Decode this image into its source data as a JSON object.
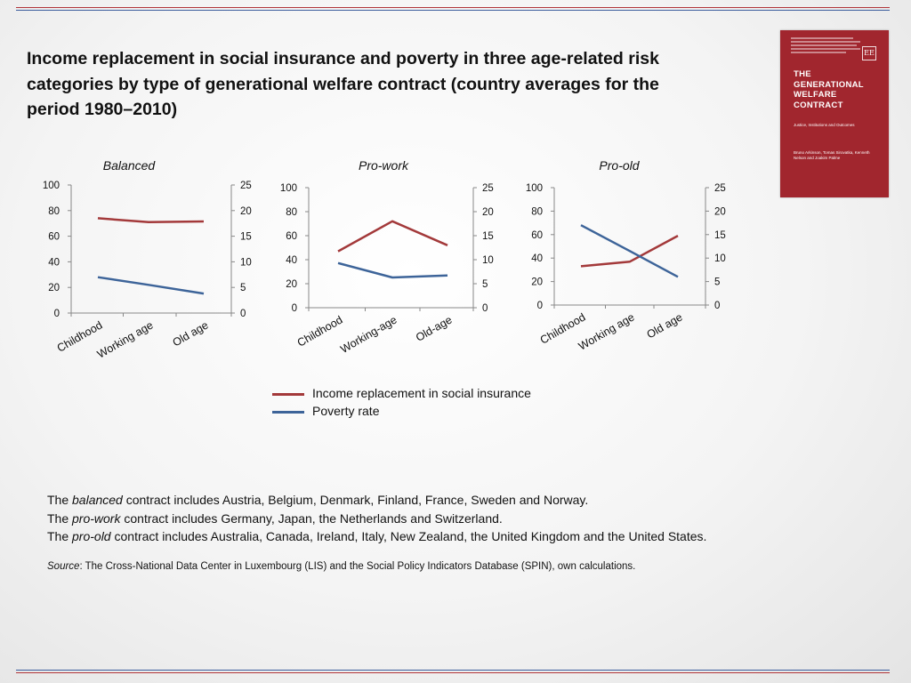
{
  "title": "Income replacement in social insurance and poverty in three age-related risk categories by type of generational welfare contract (country averages for the period 1980–2010)",
  "book": {
    "title": "THE\nGENERATIONAL\nWELFARE\nCONTRACT",
    "subtitle": "Justice, Institutions and Outcomes",
    "publisher_logo": "EE",
    "authors": "Bruno Arkinson, Tomas Sirovatka, Kenneth Nelson and Joakim Palme",
    "color": "#a1262e"
  },
  "chart_data": [
    {
      "type": "line",
      "title": "Balanced",
      "categories": [
        "Childhood",
        "Working age",
        "Old age"
      ],
      "y_left": {
        "ticks": [
          "0",
          "20",
          "40",
          "60",
          "80",
          "100"
        ],
        "ylim": [
          0,
          100
        ]
      },
      "y_right": {
        "ticks": [
          "0",
          "5",
          "10",
          "15",
          "20",
          "25"
        ],
        "ylim": [
          0,
          25
        ]
      },
      "series": [
        {
          "name": "Income replacement in social insurance",
          "axis": "left",
          "values": [
            74,
            71,
            71.5
          ]
        },
        {
          "name": "Poverty rate",
          "axis": "right",
          "values": [
            7,
            5.5,
            3.8
          ]
        }
      ]
    },
    {
      "type": "line",
      "title": "Pro-work",
      "categories": [
        "Childhood",
        "Working-age",
        "Old-age"
      ],
      "y_left": {
        "ticks": [
          "0",
          "20",
          "40",
          "60",
          "80",
          "100"
        ],
        "ylim": [
          0,
          100
        ]
      },
      "y_right": {
        "ticks": [
          "0",
          "5",
          "10",
          "15",
          "20",
          "25"
        ],
        "ylim": [
          0,
          25
        ]
      },
      "series": [
        {
          "name": "Income replacement in social insurance",
          "axis": "left",
          "values": [
            47,
            72,
            52
          ]
        },
        {
          "name": "Poverty rate",
          "axis": "right",
          "values": [
            9.3,
            6.3,
            6.7
          ]
        }
      ]
    },
    {
      "type": "line",
      "title": "Pro-old",
      "categories": [
        "Childhood",
        "Working age",
        "Old age"
      ],
      "y_left": {
        "ticks": [
          "0",
          "20",
          "40",
          "60",
          "80",
          "100"
        ],
        "ylim": [
          0,
          100
        ]
      },
      "y_right": {
        "ticks": [
          "0",
          "5",
          "10",
          "15",
          "20",
          "25"
        ],
        "ylim": [
          0,
          25
        ]
      },
      "series": [
        {
          "name": "Income replacement in social insurance",
          "axis": "left",
          "values": [
            33,
            37,
            59
          ]
        },
        {
          "name": "Poverty rate",
          "axis": "right",
          "values": [
            17,
            11.5,
            6
          ]
        }
      ]
    }
  ],
  "legend": [
    {
      "label": "Income replacement in social insurance",
      "color": "#a3393a"
    },
    {
      "label": "Poverty rate",
      "color": "#3d6499"
    }
  ],
  "notes": {
    "line1": {
      "pre": "The ",
      "em": "balanced",
      "post": " contract includes Austria, Belgium, Denmark, Finland, France, Sweden and Norway."
    },
    "line2": {
      "pre": "The ",
      "em": "pro-work",
      "post": " contract includes Germany, Japan, the Netherlands and Switzerland."
    },
    "line3": {
      "pre": "The ",
      "em": "pro-old",
      "post": " contract includes Australia, Canada, Ireland, Italy, New Zealand, the United Kingdom and the United States."
    }
  },
  "source": {
    "label": "Source",
    "text": ": The Cross-National Data Center in Luxembourg (LIS) and the Social Policy Indicators Database (SPIN), own calculations."
  }
}
